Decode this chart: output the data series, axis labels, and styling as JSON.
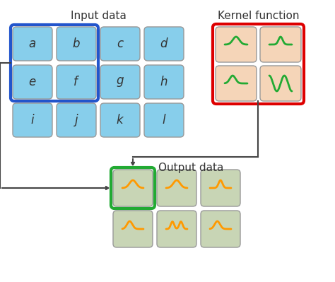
{
  "input_labels": [
    "a",
    "b",
    "c",
    "d",
    "e",
    "f",
    "g",
    "h",
    "i",
    "j",
    "k",
    "l"
  ],
  "input_cell_color": "#87CEEB",
  "input_highlight_border": "#2255CC",
  "kernel_cell_color": "#F5D5B8",
  "kernel_highlight_border": "#DD0000",
  "output_cell_color": "#C8D5B5",
  "output_highlight_border": "#22AA33",
  "wave_color_green": "#22AA33",
  "wave_color_orange": "#FF9900",
  "label_input": "Input data",
  "label_kernel": "Kernel function",
  "label_output": "Output data",
  "bg_color": "#FFFFFF",
  "cell_edge": "#999999",
  "arrow_color": "#444444"
}
